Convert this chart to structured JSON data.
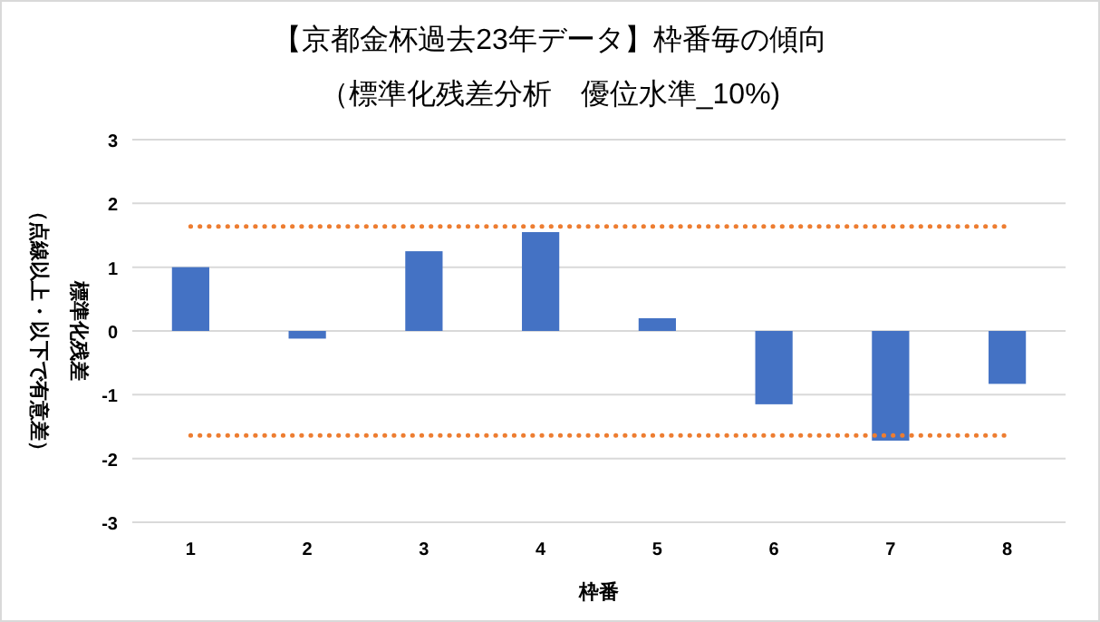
{
  "chart_data": {
    "type": "bar",
    "title": "【京都金杯過去23年データ】枠番毎の傾向",
    "subtitle": "（標準化残差分析　優位水準_10%)",
    "xlabel": "枠番",
    "ylabel": "標準化残差",
    "annotations": [
      "（点線以上・以下で有意差）"
    ],
    "categories": [
      "1",
      "2",
      "3",
      "4",
      "5",
      "6",
      "7",
      "8"
    ],
    "series": [
      {
        "color": "#4472c4",
        "values": [
          1.0,
          -0.12,
          1.25,
          1.55,
          0.2,
          -1.15,
          -1.72,
          -0.83
        ]
      }
    ],
    "ylim": [
      -3,
      3
    ],
    "yticks": [
      -3,
      -2,
      -1,
      0,
      1,
      2,
      3
    ],
    "grid": "y",
    "ref_lines": [
      {
        "axis": "y",
        "value": 1.64,
        "color": "#ed7d31",
        "line_style": "dotted"
      },
      {
        "axis": "y",
        "value": -1.64,
        "color": "#ed7d31",
        "line_style": "dotted"
      }
    ]
  }
}
